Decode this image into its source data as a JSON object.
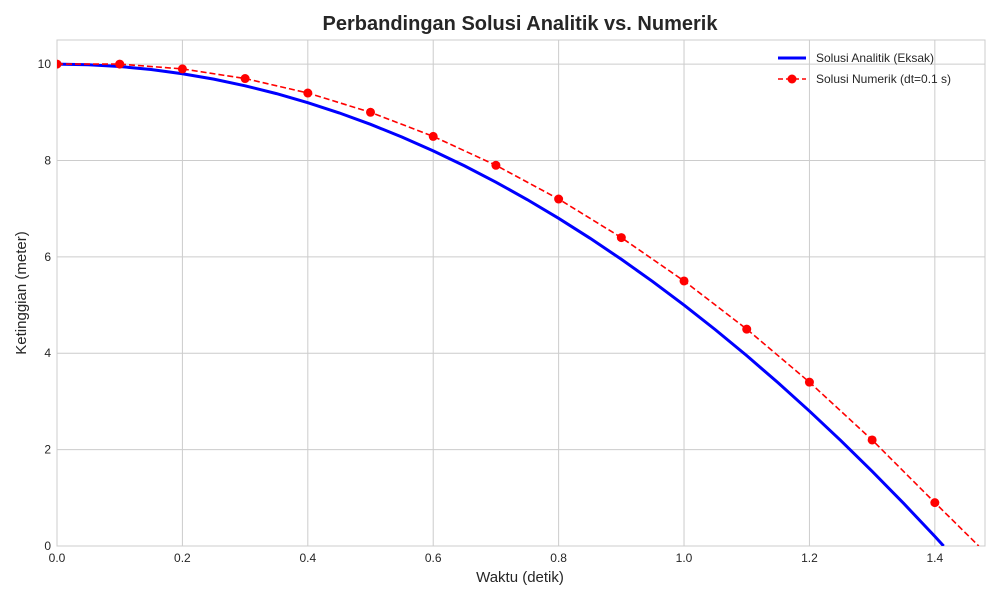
{
  "chart_data": {
    "type": "line",
    "title": "Perbandingan Solusi Analitik vs. Numerik",
    "xlabel": "Waktu (detik)",
    "ylabel": "Ketinggian (meter)",
    "xlim": [
      0,
      1.48
    ],
    "ylim": [
      0,
      10.5
    ],
    "xticks": [
      "0.0",
      "0.2",
      "0.4",
      "0.6",
      "0.8",
      "1.0",
      "1.2",
      "1.4"
    ],
    "yticks": [
      "0",
      "2",
      "4",
      "6",
      "8",
      "10"
    ],
    "grid": true,
    "legend_position": "top-right",
    "series": [
      {
        "name": "Solusi Analitik (Eksak)",
        "style": "solid",
        "color": "#0000ff",
        "x": [
          0,
          0.05,
          0.1,
          0.15,
          0.2,
          0.25,
          0.3,
          0.35,
          0.4,
          0.45,
          0.5,
          0.55,
          0.6,
          0.65,
          0.7,
          0.75,
          0.8,
          0.85,
          0.9,
          0.95,
          1.0,
          1.05,
          1.1,
          1.15,
          1.2,
          1.25,
          1.3,
          1.35,
          1.4,
          1.414
        ],
        "y": [
          10,
          9.9875,
          9.95,
          9.8875,
          9.8,
          9.6875,
          9.55,
          9.3875,
          9.2,
          8.9875,
          8.75,
          8.4875,
          8.2,
          7.8875,
          7.55,
          7.1875,
          6.8,
          6.3875,
          5.95,
          5.4875,
          5.0,
          4.4875,
          3.95,
          3.3875,
          2.8,
          2.1875,
          1.55,
          0.8875,
          0.2,
          0.0
        ]
      },
      {
        "name": "Solusi Numerik (dt=0.1 s)",
        "style": "dashed",
        "marker": "circle",
        "color": "#ff0000",
        "x": [
          0,
          0.1,
          0.2,
          0.3,
          0.4,
          0.5,
          0.6,
          0.7,
          0.8,
          0.9,
          1.0,
          1.1,
          1.2,
          1.3,
          1.4,
          1.47
        ],
        "y": [
          10,
          10.0,
          9.9,
          9.7,
          9.4,
          9.0,
          8.5,
          7.9,
          7.2,
          6.4,
          5.5,
          4.5,
          3.4,
          2.2,
          0.9,
          0
        ],
        "marker_count": 15
      }
    ]
  }
}
